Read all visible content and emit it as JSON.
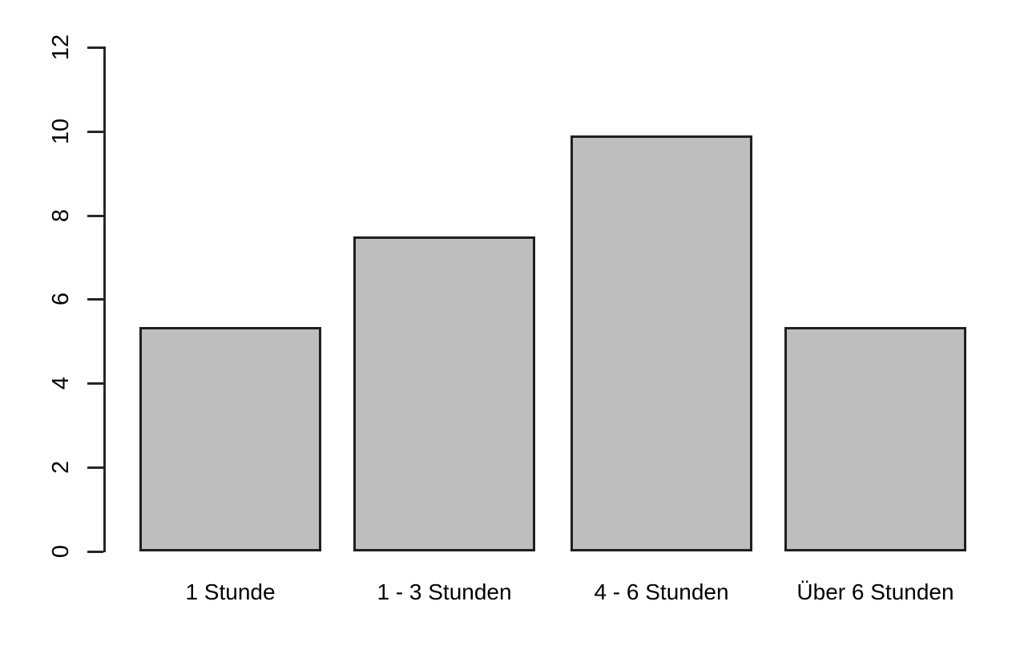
{
  "chart_data": {
    "type": "bar",
    "categories": [
      "1 Stunde",
      "1 - 3 Stunden",
      "4 - 6 Stunden",
      "Über 6 Stunden"
    ],
    "values": [
      5.35,
      7.5,
      9.9,
      5.35
    ],
    "title": "",
    "xlabel": "",
    "ylabel": "",
    "ylim": [
      0,
      12
    ],
    "yticks": [
      0,
      2,
      4,
      6,
      8,
      10,
      12
    ],
    "grid": false,
    "legend": null,
    "style": "r-base-barplot",
    "colors": {
      "bar_fill": "#bebebe",
      "bar_border": "#1f1f1f",
      "axis": "#262626",
      "text": "#000000",
      "background": "#ffffff"
    }
  }
}
